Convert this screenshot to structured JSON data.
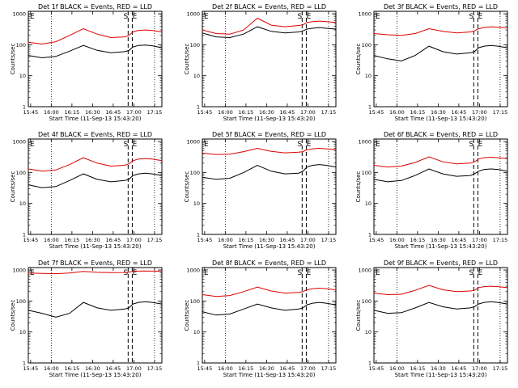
{
  "figure": {
    "xlabel": "Start Time (11-Sep-13 15:43:20)",
    "ylabel": "Counts/sec",
    "x_ticks": [
      "15:45",
      "16:00",
      "16:15",
      "16:30",
      "16:45",
      "17:00",
      "17:15"
    ],
    "x_tick_minutes": [
      1.67,
      16.67,
      31.67,
      46.67,
      61.67,
      76.67,
      91.67
    ],
    "y_ticks": [
      "1",
      "10",
      "100",
      "1000"
    ],
    "y_tick_values": [
      1,
      10,
      100,
      1000
    ],
    "xlim_minutes": [
      0,
      97
    ],
    "ylim": [
      1,
      1200
    ],
    "y_scale": "log",
    "colors": {
      "events": "#000000",
      "lld": "#dd0000"
    },
    "markers": {
      "start_label": "E",
      "s_label": "S",
      "e_label": "E",
      "dotted_minutes": [
        16.67,
        91.67
      ],
      "dashed_minutes": [
        72.5,
        75.5
      ]
    }
  },
  "chart_data": [
    {
      "type": "line",
      "title": "Det 1f BLACK = Events, RED = LLD",
      "series": [
        {
          "name": "Events",
          "color": "#000000",
          "x": [
            0,
            10,
            20,
            30,
            40,
            50,
            60,
            70,
            73,
            76,
            80,
            85,
            90,
            97
          ],
          "values": [
            45,
            38,
            42,
            62,
            95,
            66,
            55,
            60,
            65,
            85,
            95,
            98,
            93,
            80
          ]
        },
        {
          "name": "LLD",
          "color": "#dd0000",
          "x": [
            0,
            10,
            20,
            30,
            40,
            50,
            60,
            70,
            73,
            76,
            80,
            85,
            90,
            97
          ],
          "values": [
            120,
            105,
            125,
            200,
            330,
            220,
            170,
            180,
            200,
            260,
            290,
            300,
            290,
            260
          ]
        }
      ]
    },
    {
      "type": "line",
      "title": "Det 2f BLACK = Events, RED = LLD",
      "series": [
        {
          "name": "Events",
          "color": "#000000",
          "x": [
            0,
            10,
            20,
            30,
            40,
            50,
            60,
            70,
            73,
            76,
            80,
            85,
            90,
            97
          ],
          "values": [
            240,
            180,
            170,
            220,
            380,
            270,
            240,
            260,
            280,
            320,
            340,
            360,
            340,
            320
          ]
        },
        {
          "name": "LLD",
          "color": "#dd0000",
          "x": [
            0,
            10,
            20,
            30,
            40,
            50,
            60,
            70,
            73,
            76,
            80,
            85,
            90,
            97
          ],
          "values": [
            300,
            230,
            220,
            300,
            720,
            430,
            380,
            420,
            440,
            520,
            560,
            580,
            560,
            520
          ]
        }
      ]
    },
    {
      "type": "line",
      "title": "Det 3f BLACK = Events, RED = LLD",
      "series": [
        {
          "name": "Events",
          "color": "#000000",
          "x": [
            0,
            10,
            20,
            30,
            40,
            50,
            60,
            70,
            73,
            76,
            80,
            85,
            90,
            97
          ],
          "values": [
            45,
            35,
            30,
            45,
            90,
            60,
            50,
            55,
            60,
            80,
            90,
            95,
            90,
            80
          ]
        },
        {
          "name": "LLD",
          "color": "#dd0000",
          "x": [
            0,
            10,
            20,
            30,
            40,
            50,
            60,
            70,
            73,
            76,
            80,
            85,
            90,
            97
          ],
          "values": [
            230,
            210,
            200,
            230,
            330,
            270,
            240,
            260,
            280,
            330,
            360,
            380,
            370,
            350
          ]
        }
      ]
    },
    {
      "type": "line",
      "title": "Det 4f BLACK = Events, RED = LLD",
      "series": [
        {
          "name": "Events",
          "color": "#000000",
          "x": [
            0,
            10,
            20,
            30,
            40,
            50,
            60,
            70,
            73,
            76,
            80,
            85,
            90,
            97
          ],
          "values": [
            40,
            32,
            35,
            55,
            90,
            60,
            50,
            55,
            60,
            80,
            90,
            95,
            90,
            80
          ]
        },
        {
          "name": "LLD",
          "color": "#dd0000",
          "x": [
            0,
            10,
            20,
            30,
            40,
            50,
            60,
            70,
            73,
            76,
            80,
            85,
            90,
            97
          ],
          "values": [
            130,
            110,
            120,
            180,
            300,
            200,
            160,
            170,
            190,
            240,
            270,
            280,
            270,
            240
          ]
        }
      ]
    },
    {
      "type": "line",
      "title": "Det 5f BLACK = Events, RED = LLD",
      "series": [
        {
          "name": "Events",
          "color": "#000000",
          "x": [
            0,
            10,
            20,
            30,
            40,
            50,
            60,
            70,
            73,
            76,
            80,
            85,
            90,
            97
          ],
          "values": [
            70,
            60,
            65,
            100,
            170,
            110,
            90,
            95,
            110,
            150,
            170,
            180,
            170,
            150
          ]
        },
        {
          "name": "LLD",
          "color": "#dd0000",
          "x": [
            0,
            10,
            20,
            30,
            40,
            50,
            60,
            70,
            73,
            76,
            80,
            85,
            90,
            97
          ],
          "values": [
            420,
            380,
            390,
            470,
            600,
            480,
            430,
            450,
            470,
            540,
            580,
            600,
            580,
            550
          ]
        }
      ]
    },
    {
      "type": "line",
      "title": "Det 6f BLACK = Events, RED = LLD",
      "series": [
        {
          "name": "Events",
          "color": "#000000",
          "x": [
            0,
            10,
            20,
            30,
            40,
            50,
            60,
            70,
            73,
            76,
            80,
            85,
            90,
            97
          ],
          "values": [
            60,
            50,
            55,
            80,
            130,
            90,
            75,
            80,
            90,
            110,
            125,
            130,
            125,
            110
          ]
        },
        {
          "name": "LLD",
          "color": "#dd0000",
          "x": [
            0,
            10,
            20,
            30,
            40,
            50,
            60,
            70,
            73,
            76,
            80,
            85,
            90,
            97
          ],
          "values": [
            170,
            150,
            160,
            210,
            320,
            220,
            190,
            200,
            220,
            270,
            300,
            310,
            300,
            280
          ]
        }
      ]
    },
    {
      "type": "line",
      "title": "Det 7f BLACK = Events, RED = LLD",
      "series": [
        {
          "name": "Events",
          "color": "#000000",
          "x": [
            0,
            10,
            20,
            30,
            40,
            50,
            60,
            70,
            73,
            76,
            80,
            85,
            90,
            97
          ],
          "values": [
            50,
            40,
            30,
            40,
            90,
            60,
            50,
            55,
            60,
            80,
            90,
            95,
            90,
            80
          ]
        },
        {
          "name": "LLD",
          "color": "#dd0000",
          "x": [
            0,
            10,
            20,
            30,
            40,
            50,
            60,
            70,
            73,
            76,
            80,
            85,
            90,
            97
          ],
          "values": [
            800,
            780,
            760,
            800,
            900,
            840,
            820,
            830,
            850,
            900,
            920,
            930,
            920,
            900
          ]
        }
      ]
    },
    {
      "type": "line",
      "title": "Det 8f BLACK = Events, RED = LLD",
      "series": [
        {
          "name": "Events",
          "color": "#000000",
          "x": [
            0,
            10,
            20,
            30,
            40,
            50,
            60,
            70,
            73,
            76,
            80,
            85,
            90,
            97
          ],
          "values": [
            45,
            35,
            38,
            55,
            80,
            60,
            50,
            55,
            60,
            75,
            85,
            90,
            85,
            75
          ]
        },
        {
          "name": "LLD",
          "color": "#dd0000",
          "x": [
            0,
            10,
            20,
            30,
            40,
            50,
            60,
            70,
            73,
            76,
            80,
            85,
            90,
            97
          ],
          "values": [
            160,
            140,
            150,
            200,
            280,
            210,
            180,
            190,
            200,
            230,
            250,
            260,
            250,
            230
          ]
        }
      ]
    },
    {
      "type": "line",
      "title": "Det 9f BLACK = Events, RED = LLD",
      "series": [
        {
          "name": "Events",
          "color": "#000000",
          "x": [
            0,
            10,
            20,
            30,
            40,
            50,
            60,
            70,
            73,
            76,
            80,
            85,
            90,
            97
          ],
          "values": [
            50,
            40,
            42,
            60,
            90,
            65,
            55,
            60,
            65,
            80,
            90,
            95,
            90,
            80
          ]
        },
        {
          "name": "LLD",
          "color": "#dd0000",
          "x": [
            0,
            10,
            20,
            30,
            40,
            50,
            60,
            70,
            73,
            76,
            80,
            85,
            90,
            97
          ],
          "values": [
            180,
            160,
            165,
            220,
            320,
            230,
            200,
            210,
            220,
            270,
            290,
            300,
            290,
            270
          ]
        }
      ]
    }
  ]
}
